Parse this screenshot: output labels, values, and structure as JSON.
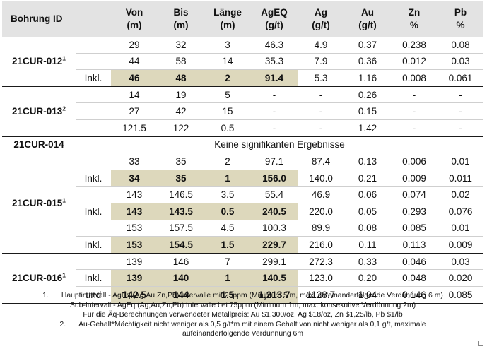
{
  "headers": [
    {
      "l1": "Bohrung ID",
      "l2": ""
    },
    {
      "l1": "",
      "l2": ""
    },
    {
      "l1": "Von",
      "l2": "(m)"
    },
    {
      "l1": "Bis",
      "l2": "(m)"
    },
    {
      "l1": "Länge",
      "l2": "(m)"
    },
    {
      "l1": "AgEQ",
      "l2": "(g/t)"
    },
    {
      "l1": "Ag",
      "l2": "(g/t)"
    },
    {
      "l1": "Au",
      "l2": "(g/t)"
    },
    {
      "l1": "Zn",
      "l2": "%"
    },
    {
      "l1": "Pb",
      "l2": "%"
    }
  ],
  "holes": {
    "h012": {
      "id": "21CUR-012",
      "sup": "1"
    },
    "h013": {
      "id": "21CUR-013",
      "sup": "2"
    },
    "h014": {
      "id": "21CUR-014",
      "note": "Keine signifikanten Ergebnisse"
    },
    "h015": {
      "id": "21CUR-015",
      "sup": "1"
    },
    "h016": {
      "id": "21CUR-016",
      "sup": "1"
    }
  },
  "rows": [
    {
      "label": "",
      "von": "29",
      "bis": "32",
      "laenge": "3",
      "ageq": "46.3",
      "ag": "4.9",
      "au": "0.37",
      "zn": "0.238",
      "pb": "0.08"
    },
    {
      "label": "",
      "von": "44",
      "bis": "58",
      "laenge": "14",
      "ageq": "35.3",
      "ag": "7.9",
      "au": "0.36",
      "zn": "0.012",
      "pb": "0.03"
    },
    {
      "label": "Inkl.",
      "von": "46",
      "bis": "48",
      "laenge": "2",
      "ageq": "91.4",
      "ag": "5.3",
      "au": "1.16",
      "zn": "0.008",
      "pb": "0.061"
    },
    {
      "label": "",
      "von": "14",
      "bis": "19",
      "laenge": "5",
      "ageq": "-",
      "ag": "-",
      "au": "0.26",
      "zn": "-",
      "pb": "-"
    },
    {
      "label": "",
      "von": "27",
      "bis": "42",
      "laenge": "15",
      "ageq": "-",
      "ag": "-",
      "au": "0.15",
      "zn": "-",
      "pb": "-"
    },
    {
      "label": "",
      "von": "121.5",
      "bis": "122",
      "laenge": "0.5",
      "ageq": "-",
      "ag": "-",
      "au": "1.42",
      "zn": "-",
      "pb": "-"
    },
    {
      "label": "",
      "von": "33",
      "bis": "35",
      "laenge": "2",
      "ageq": "97.1",
      "ag": "87.4",
      "au": "0.13",
      "zn": "0.006",
      "pb": "0.01"
    },
    {
      "label": "Inkl.",
      "von": "34",
      "bis": "35",
      "laenge": "1",
      "ageq": "156.0",
      "ag": "140.0",
      "au": "0.21",
      "zn": "0.009",
      "pb": "0.011"
    },
    {
      "label": "",
      "von": "143",
      "bis": "146.5",
      "laenge": "3.5",
      "ageq": "55.4",
      "ag": "46.9",
      "au": "0.06",
      "zn": "0.074",
      "pb": "0.02"
    },
    {
      "label": "Inkl.",
      "von": "143",
      "bis": "143.5",
      "laenge": "0.5",
      "ageq": "240.5",
      "ag": "220.0",
      "au": "0.05",
      "zn": "0.293",
      "pb": "0.076"
    },
    {
      "label": "",
      "von": "153",
      "bis": "157.5",
      "laenge": "4.5",
      "ageq": "100.3",
      "ag": "89.9",
      "au": "0.08",
      "zn": "0.085",
      "pb": "0.01"
    },
    {
      "label": "Inkl.",
      "von": "153",
      "bis": "154.5",
      "laenge": "1.5",
      "ageq": "229.7",
      "ag": "216.0",
      "au": "0.11",
      "zn": "0.113",
      "pb": "0.009"
    },
    {
      "label": "",
      "von": "139",
      "bis": "146",
      "laenge": "7",
      "ageq": "299.1",
      "ag": "272.3",
      "au": "0.33",
      "zn": "0.046",
      "pb": "0.03"
    },
    {
      "label": "Inkl.",
      "von": "139",
      "bis": "140",
      "laenge": "1",
      "ageq": "140.5",
      "ag": "123.0",
      "au": "0.20",
      "zn": "0.048",
      "pb": "0.020"
    },
    {
      "label": "und",
      "von": "142.5",
      "bis": "144",
      "laenge": "1.5",
      "ageq": "1,213.7",
      "ag": "1128.7",
      "au": "1.04",
      "zn": "0.146",
      "pb": "0.085"
    }
  ],
  "footnotes": {
    "n1": "1.",
    "f1": "Hauptintervall - AgEq (Ag,Au,Zn,Pb) Intervalle mit 25ppm (Minimum 5 m, max. aufeinanderfolgende Verdünnung 6 m)",
    "f1b": "Sub-Intervall - AgEq (Ag,Au,Zn,Pb) Intervalle bei 75ppm (Minimum 1m, max. konsekutive Verdünnung 2m)",
    "f1c": "Für die Äq-Berechnungen verwendeter Metallpreis: Au $1.300/oz, Ag $18/oz, Zn $1,25/lb, Pb $1/lb",
    "n2": "2.",
    "f2": "Au-Gehalt*Mächtigkeit nicht weniger als 0,5 g/t*m mit einem Gehalt von nicht weniger als 0,1 g/t, maximale",
    "f2b": "aufeinanderfolgende Verdünnung 6m"
  }
}
